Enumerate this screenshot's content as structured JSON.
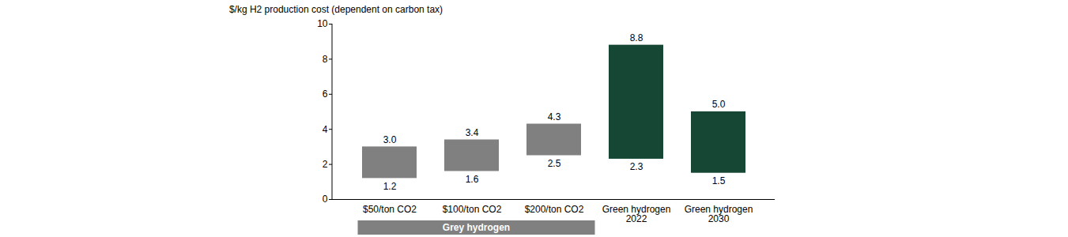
{
  "chart_data": {
    "type": "floating_bar",
    "title": "$/kg H2 production cost (dependent on carbon tax)",
    "categories": [
      "$50/ton CO2",
      "$100/ton CO2",
      "$200/ton CO2",
      "Green hydrogen 2022",
      "Green hydrogen 2030"
    ],
    "low": [
      1.2,
      1.6,
      2.5,
      2.3,
      1.5
    ],
    "high": [
      3.0,
      3.4,
      4.3,
      8.8,
      5.0
    ],
    "low_labels": [
      "1.2",
      "1.6",
      "2.5",
      "2.3",
      "1.5"
    ],
    "high_labels": [
      "3.0",
      "3.4",
      "4.3",
      "8.8",
      "5.0"
    ],
    "colors": [
      "#808080",
      "#808080",
      "#808080",
      "#154734",
      "#154734"
    ],
    "ylim": [
      0,
      10
    ],
    "yticks": [
      0,
      2,
      4,
      6,
      8,
      10
    ],
    "grid": false,
    "data_labels": true,
    "groups": [
      {
        "label": "Grey hydrogen",
        "categories": [
          "$50/ton CO2",
          "$100/ton CO2",
          "$200/ton CO2"
        ],
        "color": "#808080"
      }
    ]
  }
}
